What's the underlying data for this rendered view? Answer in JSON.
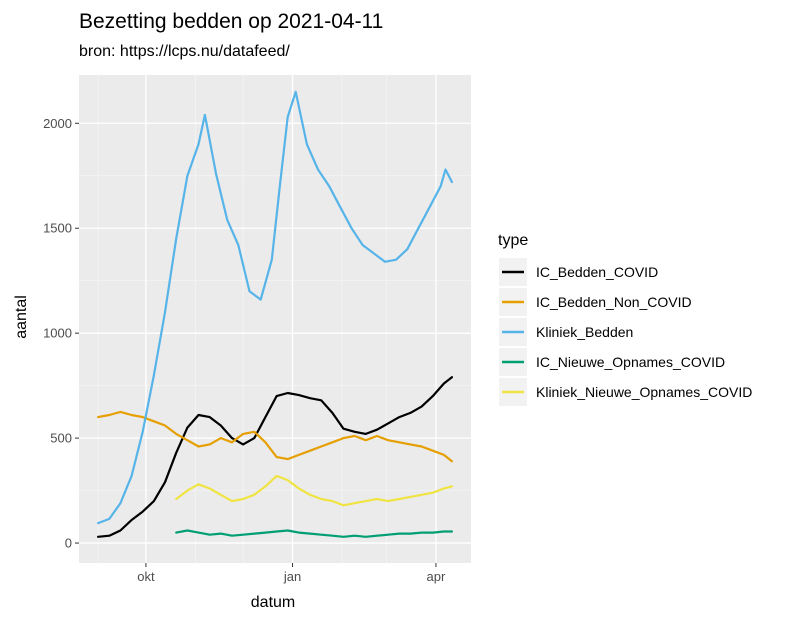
{
  "chart_data": {
    "type": "line",
    "title": "Bezetting bedden op 2021-04-11",
    "subtitle": "bron: https://lcps.nu/datafeed/",
    "xlabel": "datum",
    "ylabel": "aantal",
    "xlim": [
      "2020-08-20",
      "2021-04-23"
    ],
    "ylim": [
      -95,
      2230
    ],
    "x_ticks": [
      {
        "date": "2020-10-01",
        "label": "okt"
      },
      {
        "date": "2021-01-01",
        "label": "jan"
      },
      {
        "date": "2021-04-01",
        "label": "apr"
      }
    ],
    "y_ticks": [
      0,
      500,
      1000,
      1500,
      2000
    ],
    "grid": true,
    "legend": {
      "title": "type",
      "position": "right"
    },
    "series": [
      {
        "name": "IC_Bedden_COVID",
        "color": "#000000",
        "points": [
          [
            "2020-09-01",
            30
          ],
          [
            "2020-09-08",
            35
          ],
          [
            "2020-09-15",
            60
          ],
          [
            "2020-09-22",
            110
          ],
          [
            "2020-09-29",
            150
          ],
          [
            "2020-10-06",
            200
          ],
          [
            "2020-10-13",
            290
          ],
          [
            "2020-10-20",
            430
          ],
          [
            "2020-10-27",
            550
          ],
          [
            "2020-11-03",
            610
          ],
          [
            "2020-11-10",
            600
          ],
          [
            "2020-11-17",
            560
          ],
          [
            "2020-11-24",
            500
          ],
          [
            "2020-12-01",
            470
          ],
          [
            "2020-12-08",
            500
          ],
          [
            "2020-12-15",
            600
          ],
          [
            "2020-12-22",
            700
          ],
          [
            "2020-12-29",
            715
          ],
          [
            "2021-01-05",
            705
          ],
          [
            "2021-01-12",
            690
          ],
          [
            "2021-01-19",
            680
          ],
          [
            "2021-01-26",
            620
          ],
          [
            "2021-02-02",
            545
          ],
          [
            "2021-02-09",
            530
          ],
          [
            "2021-02-16",
            520
          ],
          [
            "2021-02-23",
            540
          ],
          [
            "2021-03-02",
            570
          ],
          [
            "2021-03-09",
            600
          ],
          [
            "2021-03-16",
            620
          ],
          [
            "2021-03-23",
            650
          ],
          [
            "2021-03-30",
            700
          ],
          [
            "2021-04-06",
            760
          ],
          [
            "2021-04-11",
            790
          ]
        ]
      },
      {
        "name": "IC_Bedden_Non_COVID",
        "color": "#E69F00",
        "points": [
          [
            "2020-09-01",
            600
          ],
          [
            "2020-09-08",
            610
          ],
          [
            "2020-09-15",
            625
          ],
          [
            "2020-09-22",
            610
          ],
          [
            "2020-09-29",
            600
          ],
          [
            "2020-10-06",
            580
          ],
          [
            "2020-10-13",
            560
          ],
          [
            "2020-10-20",
            520
          ],
          [
            "2020-10-27",
            490
          ],
          [
            "2020-11-03",
            460
          ],
          [
            "2020-11-10",
            470
          ],
          [
            "2020-11-17",
            500
          ],
          [
            "2020-11-24",
            480
          ],
          [
            "2020-12-01",
            520
          ],
          [
            "2020-12-08",
            530
          ],
          [
            "2020-12-15",
            480
          ],
          [
            "2020-12-22",
            410
          ],
          [
            "2020-12-29",
            400
          ],
          [
            "2021-01-05",
            420
          ],
          [
            "2021-01-12",
            440
          ],
          [
            "2021-01-19",
            460
          ],
          [
            "2021-01-26",
            480
          ],
          [
            "2021-02-02",
            500
          ],
          [
            "2021-02-09",
            510
          ],
          [
            "2021-02-16",
            490
          ],
          [
            "2021-02-23",
            510
          ],
          [
            "2021-03-02",
            490
          ],
          [
            "2021-03-09",
            480
          ],
          [
            "2021-03-16",
            470
          ],
          [
            "2021-03-23",
            460
          ],
          [
            "2021-03-30",
            440
          ],
          [
            "2021-04-06",
            420
          ],
          [
            "2021-04-11",
            390
          ]
        ]
      },
      {
        "name": "Kliniek_Bedden",
        "color": "#56B4E9",
        "points": [
          [
            "2020-09-01",
            95
          ],
          [
            "2020-09-08",
            115
          ],
          [
            "2020-09-15",
            190
          ],
          [
            "2020-09-22",
            320
          ],
          [
            "2020-09-29",
            530
          ],
          [
            "2020-10-06",
            800
          ],
          [
            "2020-10-13",
            1100
          ],
          [
            "2020-10-20",
            1450
          ],
          [
            "2020-10-27",
            1750
          ],
          [
            "2020-11-03",
            1900
          ],
          [
            "2020-11-07",
            2040
          ],
          [
            "2020-11-14",
            1760
          ],
          [
            "2020-11-21",
            1540
          ],
          [
            "2020-11-28",
            1420
          ],
          [
            "2020-12-05",
            1200
          ],
          [
            "2020-12-12",
            1160
          ],
          [
            "2020-12-19",
            1350
          ],
          [
            "2020-12-24",
            1700
          ],
          [
            "2020-12-29",
            2030
          ],
          [
            "2021-01-03",
            2150
          ],
          [
            "2021-01-10",
            1900
          ],
          [
            "2021-01-17",
            1780
          ],
          [
            "2021-01-24",
            1700
          ],
          [
            "2021-01-31",
            1600
          ],
          [
            "2021-02-07",
            1500
          ],
          [
            "2021-02-14",
            1420
          ],
          [
            "2021-02-21",
            1380
          ],
          [
            "2021-02-28",
            1340
          ],
          [
            "2021-03-07",
            1350
          ],
          [
            "2021-03-14",
            1400
          ],
          [
            "2021-03-21",
            1500
          ],
          [
            "2021-03-28",
            1600
          ],
          [
            "2021-04-04",
            1700
          ],
          [
            "2021-04-07",
            1780
          ],
          [
            "2021-04-11",
            1720
          ]
        ]
      },
      {
        "name": "IC_Nieuwe_Opnames_COVID",
        "color": "#009E73",
        "points": [
          [
            "2020-10-20",
            50
          ],
          [
            "2020-10-27",
            60
          ],
          [
            "2020-11-03",
            50
          ],
          [
            "2020-11-10",
            40
          ],
          [
            "2020-11-17",
            45
          ],
          [
            "2020-11-24",
            35
          ],
          [
            "2020-12-01",
            40
          ],
          [
            "2020-12-08",
            45
          ],
          [
            "2020-12-15",
            50
          ],
          [
            "2020-12-22",
            55
          ],
          [
            "2020-12-29",
            60
          ],
          [
            "2021-01-05",
            50
          ],
          [
            "2021-01-12",
            45
          ],
          [
            "2021-01-19",
            40
          ],
          [
            "2021-01-26",
            35
          ],
          [
            "2021-02-02",
            30
          ],
          [
            "2021-02-09",
            35
          ],
          [
            "2021-02-16",
            30
          ],
          [
            "2021-02-23",
            35
          ],
          [
            "2021-03-02",
            40
          ],
          [
            "2021-03-09",
            45
          ],
          [
            "2021-03-16",
            45
          ],
          [
            "2021-03-23",
            50
          ],
          [
            "2021-03-30",
            50
          ],
          [
            "2021-04-06",
            55
          ],
          [
            "2021-04-11",
            55
          ]
        ]
      },
      {
        "name": "Kliniek_Nieuwe_Opnames_COVID",
        "color": "#F0E442",
        "points": [
          [
            "2020-10-20",
            210
          ],
          [
            "2020-10-27",
            250
          ],
          [
            "2020-11-03",
            280
          ],
          [
            "2020-11-10",
            260
          ],
          [
            "2020-11-17",
            230
          ],
          [
            "2020-11-24",
            200
          ],
          [
            "2020-12-01",
            210
          ],
          [
            "2020-12-08",
            230
          ],
          [
            "2020-12-15",
            270
          ],
          [
            "2020-12-22",
            320
          ],
          [
            "2020-12-29",
            300
          ],
          [
            "2021-01-05",
            260
          ],
          [
            "2021-01-12",
            230
          ],
          [
            "2021-01-19",
            210
          ],
          [
            "2021-01-26",
            200
          ],
          [
            "2021-02-02",
            180
          ],
          [
            "2021-02-09",
            190
          ],
          [
            "2021-02-16",
            200
          ],
          [
            "2021-02-23",
            210
          ],
          [
            "2021-03-02",
            200
          ],
          [
            "2021-03-09",
            210
          ],
          [
            "2021-03-16",
            220
          ],
          [
            "2021-03-23",
            230
          ],
          [
            "2021-03-30",
            240
          ],
          [
            "2021-04-06",
            260
          ],
          [
            "2021-04-11",
            270
          ]
        ]
      }
    ]
  }
}
